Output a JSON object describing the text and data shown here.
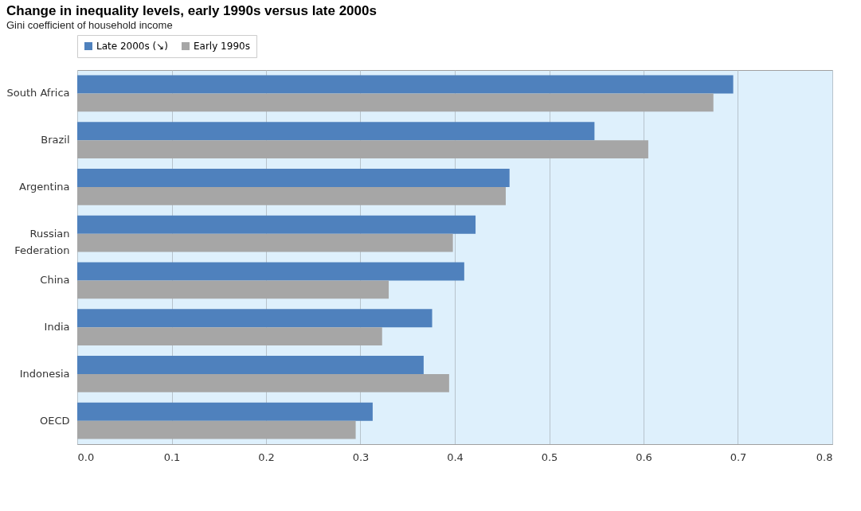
{
  "chart_data": {
    "type": "bar",
    "orientation": "horizontal",
    "title": "Change in inequality levels, early 1990s versus late 2000s",
    "subtitle": "Gini coefficient of household income",
    "categories": [
      "South Africa",
      "Brazil",
      "Argentina",
      "Russian Federation",
      "China",
      "India",
      "Indonesia",
      "OECD"
    ],
    "series": [
      {
        "name": "Late 2000s (↘)",
        "color": "#4f81bd",
        "values": [
          0.695,
          0.548,
          0.458,
          0.422,
          0.41,
          0.376,
          0.367,
          0.313
        ]
      },
      {
        "name": "Early 1990s",
        "color": "#a6a6a6",
        "values": [
          0.674,
          0.605,
          0.454,
          0.398,
          0.33,
          0.323,
          0.394,
          0.295
        ]
      }
    ],
    "xlim": [
      0,
      0.8
    ],
    "xticks": [
      {
        "value": 0,
        "label": "0.0"
      },
      0.1,
      0.2,
      0.3,
      0.4,
      0.5,
      0.6,
      0.7,
      0.8
    ],
    "grid": "x",
    "legend": "top left"
  }
}
